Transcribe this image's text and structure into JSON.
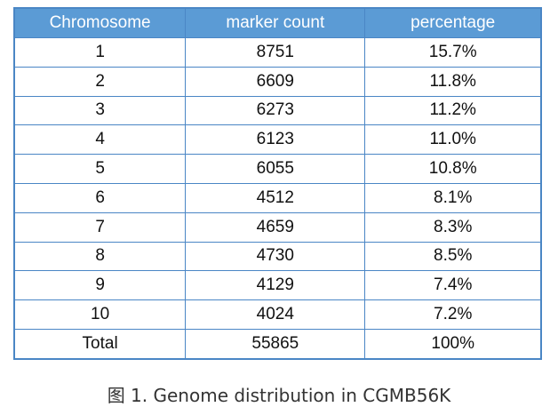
{
  "table": {
    "headers": [
      "Chromosome",
      "marker count",
      "percentage"
    ],
    "rows": [
      [
        "1",
        "8751",
        "15.7%"
      ],
      [
        "2",
        "6609",
        "11.8%"
      ],
      [
        "3",
        "6273",
        "11.2%"
      ],
      [
        "4",
        "6123",
        "11.0%"
      ],
      [
        "5",
        "6055",
        "10.8%"
      ],
      [
        "6",
        "4512",
        "8.1%"
      ],
      [
        "7",
        "4659",
        "8.3%"
      ],
      [
        "8",
        "4730",
        "8.5%"
      ],
      [
        "9",
        "4129",
        "7.4%"
      ],
      [
        "10",
        "4024",
        "7.2%"
      ],
      [
        "Total",
        "55865",
        "100%"
      ]
    ]
  },
  "caption": "图 1. Genome distribution in CGMB56K",
  "colors": {
    "header_bg": "#5b9bd5",
    "border": "#4a86c5",
    "header_text": "#ffffff"
  }
}
